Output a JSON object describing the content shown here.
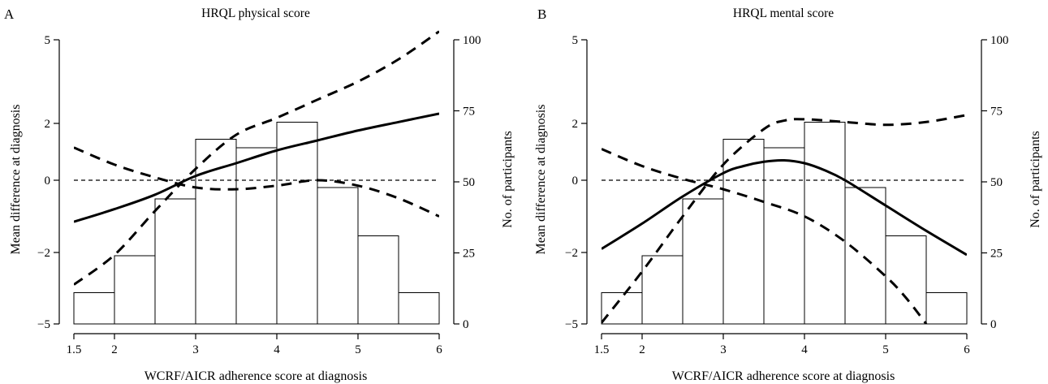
{
  "chart_data": [
    {
      "type": "line",
      "panel_letter": "A",
      "title": "HRQL physical score",
      "xlabel": "WCRF/AICR adherence score at diagnosis",
      "ylabel": "Mean difference at diagnosis",
      "y2label": "No. of participants",
      "xlim": [
        1.5,
        6
      ],
      "ylim": [
        -5,
        5
      ],
      "y2lim": [
        0,
        100
      ],
      "x_ticks": [
        1.5,
        2,
        3,
        4,
        5,
        6
      ],
      "y_ticks": [
        -5,
        -2,
        0,
        2,
        5
      ],
      "y2_ticks": [
        0,
        25,
        50,
        75,
        100
      ],
      "reference_line": 0,
      "histogram": {
        "bins": [
          [
            1.5,
            2
          ],
          [
            2,
            2.5
          ],
          [
            2.5,
            3
          ],
          [
            3,
            3.5
          ],
          [
            3.5,
            4
          ],
          [
            4,
            4.5
          ],
          [
            4.5,
            5
          ],
          [
            5,
            5.5
          ],
          [
            5.5,
            6
          ]
        ],
        "counts": [
          11,
          24,
          44,
          65,
          62,
          71,
          48,
          31,
          11
        ]
      },
      "series": [
        {
          "role": "estimate",
          "style": "solid",
          "x": [
            1.5,
            2,
            2.5,
            3,
            3.5,
            4,
            4.5,
            5,
            5.5,
            6
          ],
          "y": [
            -1.15,
            -0.8,
            -0.4,
            0.15,
            0.6,
            1.05,
            1.4,
            1.75,
            2.05,
            2.35
          ]
        },
        {
          "role": "upper-ci",
          "style": "dashed",
          "x": [
            1.5,
            2,
            2.5,
            3,
            3.5,
            4,
            4.5,
            5,
            5.5,
            6
          ],
          "y": [
            -3.35,
            -2.1,
            -0.85,
            0.4,
            1.6,
            2.2,
            2.85,
            3.5,
            4.3,
            5.3
          ]
        },
        {
          "role": "lower-ci",
          "style": "dashed",
          "x": [
            1.5,
            2,
            2.5,
            3,
            3.5,
            4,
            4.5,
            5,
            5.5,
            6
          ],
          "y": [
            1.15,
            0.55,
            0.1,
            -0.2,
            -0.25,
            -0.15,
            0.0,
            -0.15,
            -0.5,
            -1.0
          ]
        }
      ]
    },
    {
      "type": "line",
      "panel_letter": "B",
      "title": "HRQL mental score",
      "xlabel": "WCRF/AICR adherence score at diagnosis",
      "ylabel": "Mean difference at diagnosis",
      "y2label": "No. of participants",
      "xlim": [
        1.5,
        6
      ],
      "ylim": [
        -5,
        5
      ],
      "y2lim": [
        0,
        100
      ],
      "x_ticks": [
        1.5,
        2,
        3,
        4,
        5,
        6
      ],
      "y_ticks": [
        -5,
        -2,
        0,
        2,
        5
      ],
      "y2_ticks": [
        0,
        25,
        50,
        75,
        100
      ],
      "reference_line": 0,
      "histogram": {
        "bins": [
          [
            1.5,
            2
          ],
          [
            2,
            2.5
          ],
          [
            2.5,
            3
          ],
          [
            3,
            3.5
          ],
          [
            3.5,
            4
          ],
          [
            4,
            4.5
          ],
          [
            4.5,
            5
          ],
          [
            5,
            5.5
          ],
          [
            5.5,
            6
          ]
        ],
        "counts": [
          11,
          24,
          44,
          65,
          62,
          71,
          48,
          31,
          11
        ]
      },
      "series": [
        {
          "role": "estimate",
          "style": "solid",
          "x": [
            1.5,
            2,
            2.5,
            3,
            3.25,
            3.5,
            3.75,
            4,
            4.25,
            4.5,
            5,
            5.5,
            6
          ],
          "y": [
            -1.9,
            -1.2,
            -0.45,
            0.25,
            0.5,
            0.65,
            0.7,
            0.6,
            0.35,
            0.0,
            -0.7,
            -1.4,
            -2.1
          ]
        },
        {
          "role": "upper-ci",
          "style": "dashed",
          "x": [
            1.5,
            2,
            2.5,
            3,
            3.5,
            3.75,
            4,
            4.5,
            5,
            5.5,
            6
          ],
          "y": [
            -4.95,
            -2.8,
            -1.0,
            0.55,
            1.8,
            2.1,
            2.15,
            2.05,
            1.95,
            2.05,
            2.3
          ]
        },
        {
          "role": "lower-ci",
          "style": "dashed",
          "x": [
            1.5,
            2,
            2.5,
            3,
            3.5,
            4,
            4.5,
            5,
            5.25,
            5.5
          ],
          "y": [
            1.1,
            0.5,
            0.05,
            -0.25,
            -0.6,
            -1.0,
            -1.7,
            -3.0,
            -3.9,
            -5.0
          ]
        }
      ]
    }
  ]
}
